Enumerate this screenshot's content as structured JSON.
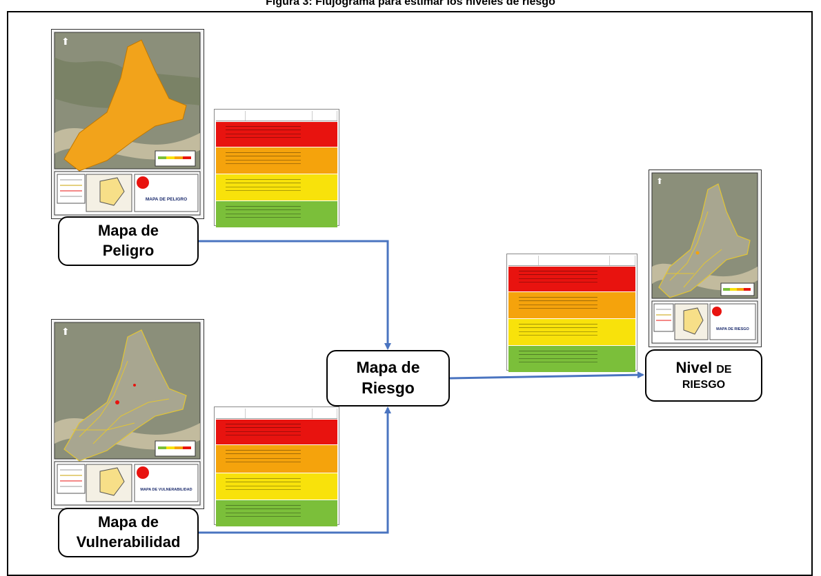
{
  "page": {
    "title": "Figura 3: Flujograma para estimar los niveles de riesgo"
  },
  "nodes": {
    "peligro": {
      "line1": "Mapa de",
      "line2": "Peligro"
    },
    "vulnerabilidad": {
      "line1": "Mapa de",
      "line2": "Vulnerabilidad"
    },
    "riesgo": {
      "line1": "Mapa de",
      "line2": "Riesgo"
    },
    "nivel": {
      "line1_main": "Nivel",
      "line1_small": "DE",
      "line2": "RIESGO"
    }
  },
  "maps": {
    "peligro": "MAPA DE PELIGRO",
    "vulnerabilidad": "MAPA DE VULNERABILIDAD",
    "riesgo": "MAPA DE RIESGO"
  },
  "colors": {
    "arrow": "#4a74c0",
    "very_high": "#e8130f",
    "high": "#f5a30c",
    "medium": "#f8e20b",
    "low": "#7bbf3a",
    "hazard_fill": "#f2a31b",
    "terrain": "#8b8f7a"
  }
}
